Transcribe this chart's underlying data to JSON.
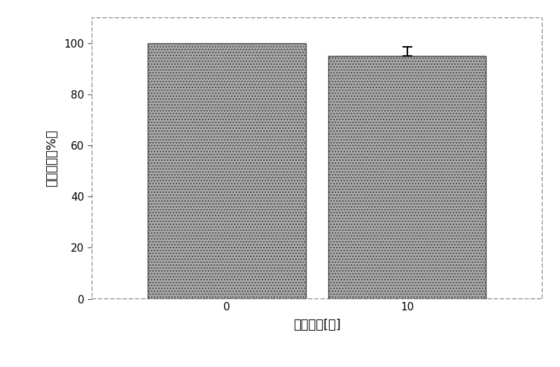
{
  "categories": [
    "0",
    "10"
  ],
  "values": [
    100,
    95
  ],
  "errors": [
    0,
    3.5
  ],
  "bar_color": "#aaaaaa",
  "bar_hatch": "....",
  "bar_width": 0.35,
  "bar_positions": [
    0.3,
    0.7
  ],
  "xlabel": "洸泡时间[天]",
  "ylabel": "抗菌效率［%］",
  "ylim": [
    0,
    110
  ],
  "yticks": [
    0,
    20,
    40,
    60,
    80,
    100
  ],
  "xtick_labels": [
    "0",
    "10"
  ],
  "xlabel_fontsize": 13,
  "ylabel_fontsize": 13,
  "tick_fontsize": 11,
  "background_color": "#ffffff",
  "figure_bg": "#ffffff",
  "edge_color": "#444444",
  "hatch_color": "#444444"
}
